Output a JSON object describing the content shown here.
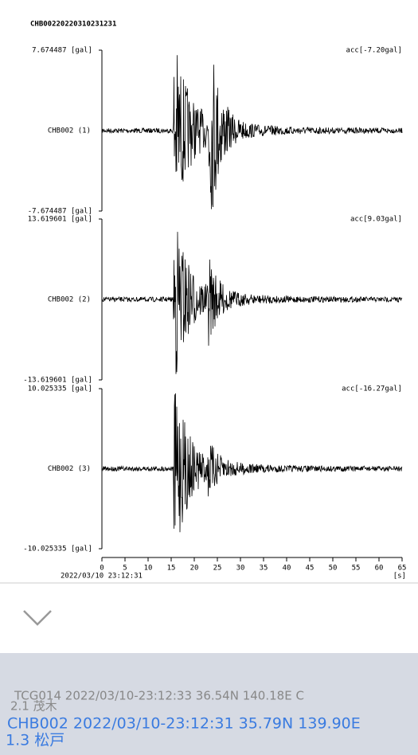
{
  "title": "CHB00220220310231231",
  "panels": [
    {
      "top": "7.674487 [gal]",
      "bottom": "-7.674487 [gal]",
      "channel": "CHB002 (1)",
      "acc": "acc[-7.20gal]"
    },
    {
      "top": "13.619601 [gal]",
      "bottom": "-13.619601 [gal]",
      "channel": "CHB002 (2)",
      "acc": "acc[9.03gal]"
    },
    {
      "top": "10.025335 [gal]",
      "bottom": "-10.025335 [gal]",
      "channel": "CHB002 (3)",
      "acc": "acc[-16.27gal]"
    }
  ],
  "x_axis": {
    "ticks": [
      "0",
      "5",
      "10",
      "15",
      "20",
      "25",
      "30",
      "35",
      "40",
      "45",
      "50",
      "55",
      "60",
      "65"
    ],
    "unit": "[s]",
    "start": "2022/03/10 23:12:31"
  },
  "list": [
    {
      "line1": "TCG014 2022/03/10-23:12:33 36.54N 140.18E C",
      "line2": "2.1 茂木"
    },
    {
      "line1": "CHB002 2022/03/10-23:12:31 35.79N 139.90E",
      "line2": "1.3 松戸"
    }
  ]
}
